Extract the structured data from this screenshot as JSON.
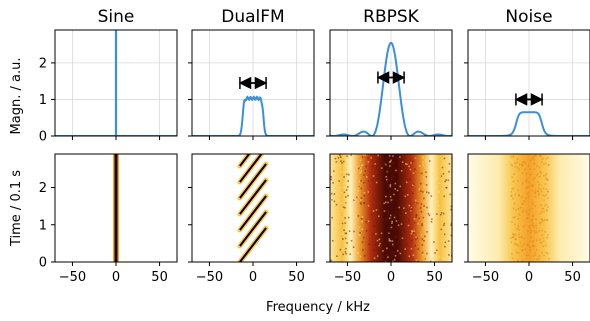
{
  "figure": {
    "xlabel": "Frequency / kHz",
    "ylabel_top": "Magn. / a.u.",
    "ylabel_bottom": "Time / 0.1 s"
  },
  "chart_data": [
    {
      "type": "line",
      "title": "Sine",
      "row": "spectrum",
      "xlim": [
        -70,
        70
      ],
      "ylim": [
        0,
        2.9
      ],
      "xticks": [
        -50,
        0,
        50
      ],
      "yticks": [
        0,
        1,
        2
      ],
      "grid": true,
      "series": [
        {
          "x": [
            0,
            0
          ],
          "y": [
            0,
            2.9
          ]
        }
      ]
    },
    {
      "type": "line",
      "title": "DualFM",
      "row": "spectrum",
      "xlim": [
        -70,
        70
      ],
      "ylim": [
        0,
        2.9
      ],
      "xticks": [
        -50,
        0,
        50
      ],
      "yticks": [
        0,
        1,
        2
      ],
      "grid": true,
      "bandwidth_arrow": {
        "x": [
          -15,
          15
        ],
        "y": 1.45
      }
    },
    {
      "type": "line",
      "title": "RBPSK",
      "row": "spectrum",
      "xlim": [
        -70,
        70
      ],
      "ylim": [
        0,
        2.9
      ],
      "xticks": [
        -50,
        0,
        50
      ],
      "yticks": [
        0,
        1,
        2
      ],
      "grid": true,
      "bandwidth_arrow": {
        "x": [
          -15,
          15
        ],
        "y": 1.6
      }
    },
    {
      "type": "line",
      "title": "Noise",
      "row": "spectrum",
      "xlim": [
        -70,
        70
      ],
      "ylim": [
        0,
        2.9
      ],
      "xticks": [
        -50,
        0,
        50
      ],
      "yticks": [
        0,
        1,
        2
      ],
      "grid": true,
      "bandwidth_arrow": {
        "x": [
          -15,
          15
        ],
        "y": 1.0
      }
    },
    {
      "type": "heatmap",
      "row": "spectrogram",
      "signal": "Sine",
      "xlim": [
        -70,
        70
      ],
      "ylim": [
        0,
        2.9
      ],
      "xticks": [
        -50,
        0,
        50
      ],
      "yticks": [
        0,
        1,
        2
      ]
    },
    {
      "type": "heatmap",
      "row": "spectrogram",
      "signal": "DualFM",
      "xlim": [
        -70,
        70
      ],
      "ylim": [
        0,
        2.9
      ],
      "xticks": [
        -50,
        0,
        50
      ],
      "yticks": [
        0,
        1,
        2
      ]
    },
    {
      "type": "heatmap",
      "row": "spectrogram",
      "signal": "RBPSK",
      "xlim": [
        -70,
        70
      ],
      "ylim": [
        0,
        2.9
      ],
      "xticks": [
        -50,
        0,
        50
      ],
      "yticks": [
        0,
        1,
        2
      ]
    },
    {
      "type": "heatmap",
      "row": "spectrogram",
      "signal": "Noise",
      "xlim": [
        -70,
        70
      ],
      "ylim": [
        0,
        2.9
      ],
      "xticks": [
        -50,
        0,
        50
      ],
      "yticks": [
        0,
        1,
        2
      ]
    }
  ],
  "colors": {
    "line": "#3b8fd9",
    "grid": "#d9d9d9",
    "axis": "#000000"
  }
}
